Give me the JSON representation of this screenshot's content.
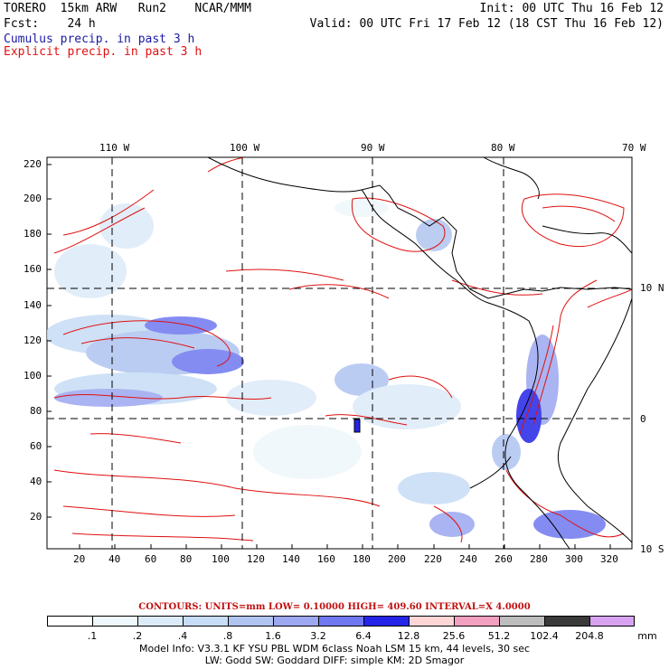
{
  "header": {
    "model": "TORERO  15km ARW   Run2    NCAR/MMM",
    "init": "Init: 00 UTC Thu 16 Feb 12",
    "fcst": "Fcst:    24 h",
    "valid": "Valid: 00 UTC Fri 17 Feb 12 (18 CST Thu 16 Feb 12)",
    "cumulus": "Cumulus precip. in past 3 h",
    "explicit": "Explicit precip. in past 3 h"
  },
  "map": {
    "lon_labels": [
      "110 W",
      "100 W",
      "90 W",
      "80 W",
      "70 W"
    ],
    "lat_labels": [
      "10 N",
      "0",
      "10 S"
    ],
    "y_ticks": [
      "220",
      "200",
      "180",
      "160",
      "140",
      "120",
      "100",
      "80",
      "60",
      "40",
      "20"
    ],
    "x_ticks": [
      "20",
      "40",
      "60",
      "80",
      "100",
      "120",
      "140",
      "160",
      "180",
      "200",
      "220",
      "240",
      "260",
      "280",
      "300",
      "320"
    ],
    "contour_color": "#e01010",
    "land_outline_color": "#000000"
  },
  "contours_line": "CONTOURS:  UNITS=mm  LOW= 0.10000      HIGH=  409.60      INTERVAL=X  4.0000",
  "colorbar": {
    "labels": [
      ".1",
      ".2",
      ".4",
      ".8",
      "1.6",
      "3.2",
      "6.4",
      "12.8",
      "25.6",
      "51.2",
      "102.4",
      "204.8"
    ],
    "units": "mm",
    "colors": [
      "#ffffff",
      "#eef7fb",
      "#dcebf8",
      "#c7dcf5",
      "#b0c4f0",
      "#9ca8f0",
      "#6f78f0",
      "#2424e8",
      "#ffd6d6",
      "#f2a0c0",
      "#bdbdbd",
      "#3a3a3a",
      "#d7a3f0"
    ]
  },
  "footer": {
    "line1": "Model Info: V3.3.1   KF     YSU PBL   WDM 6class  Noah LSM  15 km,    44 levels,    30 sec",
    "line2": "LW: Godd SW: Goddard DIFF: simple KM: 2D Smagor"
  }
}
